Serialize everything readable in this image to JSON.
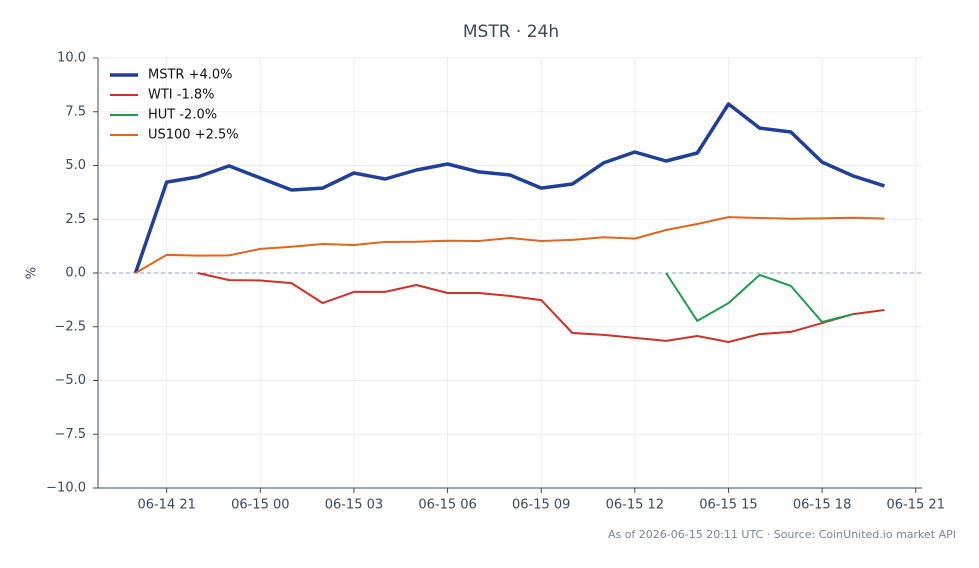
{
  "chart_data": {
    "type": "line",
    "title": "MSTR · 24h",
    "ylabel": "%",
    "footer": "As of 2026-06-15 20:11 UTC · Source: CoinUnited.io market API",
    "x": [
      "06-14 20",
      "06-14 21",
      "06-14 22",
      "06-14 23",
      "06-15 00",
      "06-15 01",
      "06-15 02",
      "06-15 03",
      "06-15 04",
      "06-15 05",
      "06-15 06",
      "06-15 07",
      "06-15 08",
      "06-15 09",
      "06-15 10",
      "06-15 11",
      "06-15 12",
      "06-15 13",
      "06-15 14",
      "06-15 15",
      "06-15 16",
      "06-15 17",
      "06-15 18",
      "06-15 19",
      "06-15 20"
    ],
    "xlim": [
      "06-14 18:48",
      "06-15 21:12"
    ],
    "xticks": [
      "06-14 21",
      "06-15 00",
      "06-15 03",
      "06-15 06",
      "06-15 09",
      "06-15 12",
      "06-15 15",
      "06-15 18",
      "06-15 21"
    ],
    "ylim": [
      -10,
      10
    ],
    "yticks": [
      {
        "value": -10,
        "label": "−10.0"
      },
      {
        "value": -7.5,
        "label": "−7.5"
      },
      {
        "value": -5,
        "label": "−5.0"
      },
      {
        "value": -2.5,
        "label": "−2.5"
      },
      {
        "value": 0,
        "label": "0.0"
      },
      {
        "value": 2.5,
        "label": "2.5"
      },
      {
        "value": 5,
        "label": "5.0"
      },
      {
        "value": 7.5,
        "label": "7.5"
      },
      {
        "value": 10,
        "label": "10.0"
      }
    ],
    "grid": true,
    "zeroline": true,
    "legend": "upper-left",
    "series": [
      {
        "name": "MSTR +4.0%",
        "color": "#1f3f99",
        "width": 3.5,
        "values": [
          0,
          4.23,
          4.47,
          4.98,
          4.42,
          3.86,
          3.95,
          4.65,
          4.37,
          4.79,
          5.07,
          4.7,
          4.56,
          3.95,
          4.14,
          5.12,
          5.63,
          5.21,
          5.58,
          7.86,
          6.74,
          6.56,
          5.16,
          4.51,
          4.05
        ]
      },
      {
        "name": "WTI -1.8%",
        "color": "#d03027",
        "width": 2,
        "values": [
          null,
          null,
          0,
          -0.33,
          -0.35,
          -0.47,
          -1.4,
          -0.88,
          -0.88,
          -0.56,
          -0.93,
          -0.93,
          -1.07,
          -1.26,
          -2.79,
          -2.88,
          -3.02,
          -3.16,
          -2.93,
          -3.21,
          -2.84,
          -2.74,
          -2.33,
          -1.91,
          -1.72
        ]
      },
      {
        "name": "HUT -2.0%",
        "color": "#1e9e4a",
        "width": 2,
        "values": [
          null,
          null,
          null,
          null,
          null,
          null,
          null,
          null,
          null,
          null,
          null,
          null,
          null,
          null,
          null,
          null,
          null,
          0,
          -2.23,
          -1.4,
          -0.09,
          -0.6,
          -2.28,
          -1.91,
          null
        ]
      },
      {
        "name": "US100 +2.5%",
        "color": "#e0661c",
        "width": 2,
        "values": [
          0,
          0.84,
          0.81,
          0.82,
          1.12,
          1.22,
          1.35,
          1.3,
          1.44,
          1.45,
          1.5,
          1.49,
          1.63,
          1.49,
          1.54,
          1.66,
          1.6,
          2.0,
          2.28,
          2.6,
          2.56,
          2.52,
          2.54,
          2.57,
          2.53
        ]
      }
    ]
  }
}
